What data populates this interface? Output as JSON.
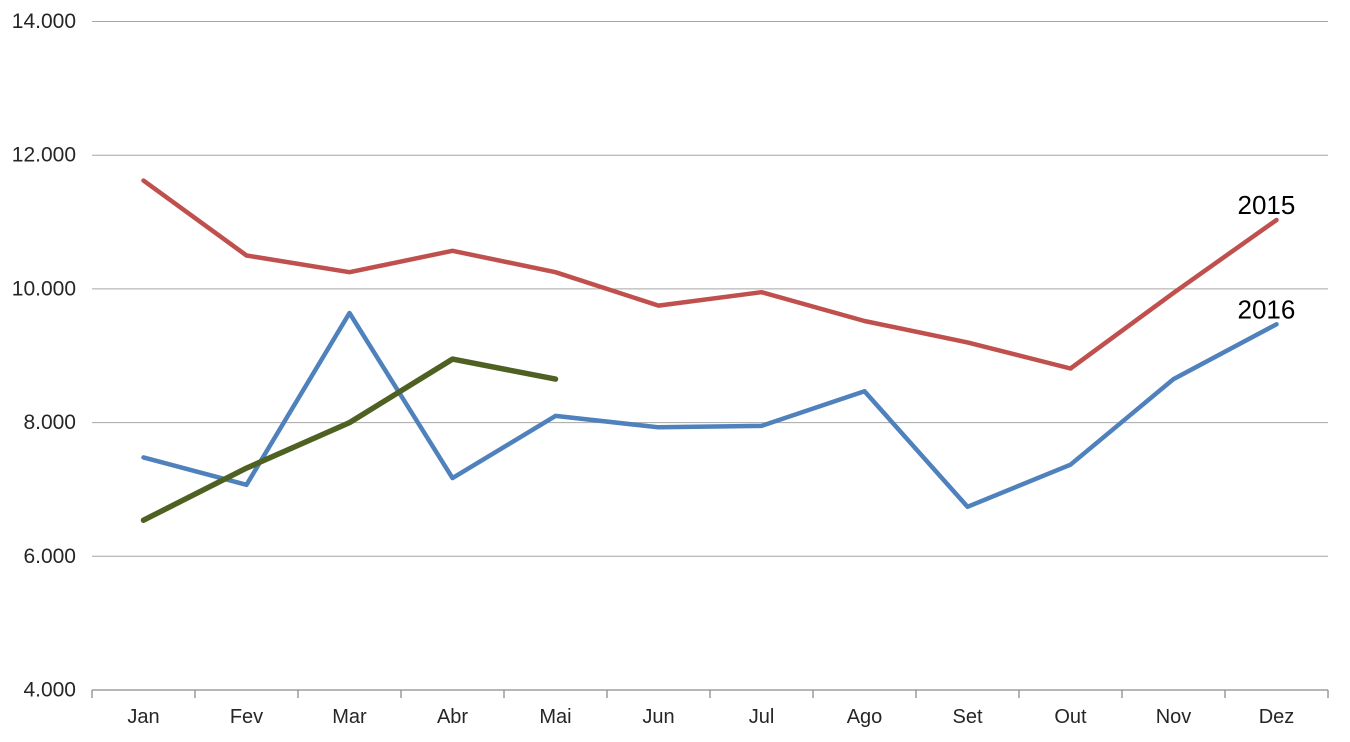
{
  "chart_data": {
    "type": "line",
    "title": "",
    "xlabel": "",
    "ylabel": "",
    "categories": [
      "Jan",
      "Fev",
      "Mar",
      "Abr",
      "Mai",
      "Jun",
      "Jul",
      "Ago",
      "Set",
      "Out",
      "Nov",
      "Dez"
    ],
    "series": [
      {
        "name": "2015",
        "color": "#C0504D",
        "line_width": 4.5,
        "end_label": "2015",
        "values": [
          11620,
          10500,
          10250,
          10570,
          10250,
          9750,
          9950,
          9520,
          9200,
          8810,
          9940,
          11030
        ]
      },
      {
        "name": "2016",
        "color": "#4F81BD",
        "line_width": 4.5,
        "end_label": "2016",
        "values": [
          7480,
          7070,
          9640,
          7170,
          8100,
          7930,
          7950,
          8470,
          6740,
          7370,
          8650,
          9470
        ]
      },
      {
        "name": "",
        "color": "#4E6022",
        "line_width": 5.5,
        "end_label": "",
        "values": [
          6540,
          7320,
          8000,
          8950,
          8650,
          null,
          null,
          null,
          null,
          null,
          null,
          null
        ]
      }
    ],
    "ylim": [
      4000,
      14000
    ],
    "y_ticks": [
      {
        "value": 4000,
        "label": "4.000"
      },
      {
        "value": 6000,
        "label": "6.000"
      },
      {
        "value": 8000,
        "label": "8.000"
      },
      {
        "value": 10000,
        "label": "10.000"
      },
      {
        "value": 12000,
        "label": "12.000"
      },
      {
        "value": 14000,
        "label": "14.000"
      }
    ],
    "grid": true,
    "gridline_color": "#A6A6A6",
    "axis_line_color": "#8C8C8C",
    "tick_label_color": "#262626",
    "legend_position": "labels-at-line-end"
  }
}
